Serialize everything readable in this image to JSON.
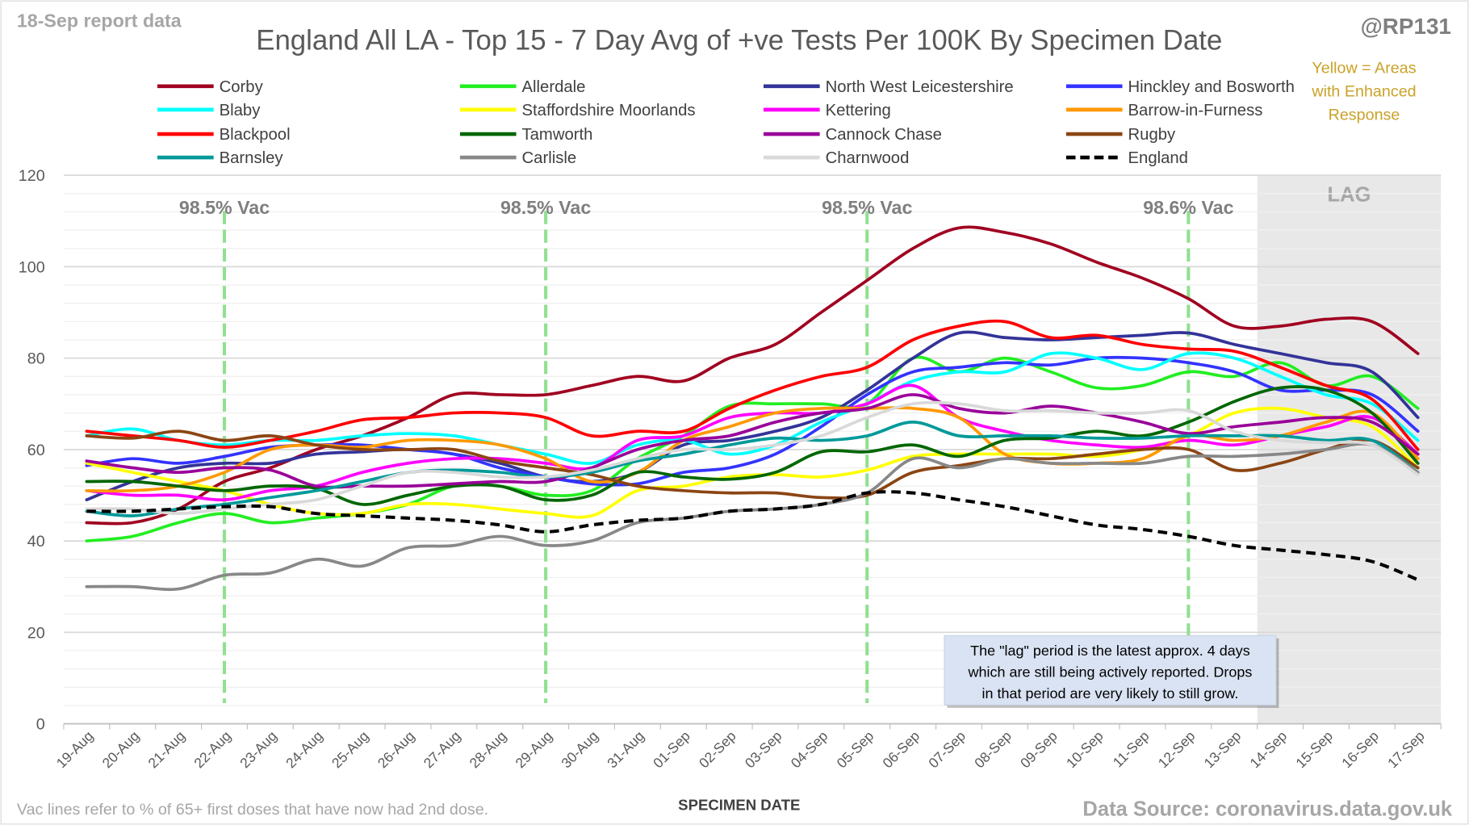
{
  "header": {
    "report_label": "18-Sep report data",
    "handle": "@RP131",
    "note_lines": [
      "Yellow = Areas",
      "with Enhanced",
      "Response"
    ]
  },
  "footer": {
    "vac_note": "Vac lines refer to % of 65+ first doses that have now had 2nd dose.",
    "source": "Data Source: coronavirus.data.gov.uk"
  },
  "callout": {
    "lines": [
      "The \"lag\" period is the latest approx. 4 days",
      "which are still being actively reported.  Drops",
      "in that period are very likely to still grow."
    ]
  },
  "colors": {
    "note": "#c9a227",
    "lag_fill": "#e8e8e8",
    "vac_line": "#90e090",
    "callout_fill": "#dae3f3"
  },
  "chart_data": {
    "type": "line",
    "title": "England All LA - Top 15 - 7 Day Avg of +ve Tests Per 100K By Specimen Date",
    "xlabel": "SPECIMEN DATE",
    "ylabel": "",
    "ylim": [
      0,
      120
    ],
    "yticks": [
      0,
      20,
      40,
      60,
      80,
      100,
      120
    ],
    "grid": true,
    "legend": "top",
    "categories": [
      "19-Aug",
      "20-Aug",
      "21-Aug",
      "22-Aug",
      "23-Aug",
      "24-Aug",
      "25-Aug",
      "26-Aug",
      "27-Aug",
      "28-Aug",
      "29-Aug",
      "30-Aug",
      "31-Aug",
      "01-Sep",
      "02-Sep",
      "03-Sep",
      "04-Sep",
      "05-Sep",
      "06-Sep",
      "07-Sep",
      "08-Sep",
      "09-Sep",
      "10-Sep",
      "11-Sep",
      "12-Sep",
      "13-Sep",
      "14-Sep",
      "15-Sep",
      "16-Sep",
      "17-Sep"
    ],
    "lag_region": {
      "label": "LAG",
      "from": "14-Sep",
      "to": "17-Sep"
    },
    "vac_lines": [
      {
        "date": "22-Aug",
        "label": "98.5% Vac"
      },
      {
        "date": "29-Aug",
        "label": "98.5% Vac"
      },
      {
        "date": "05-Sep",
        "label": "98.5% Vac"
      },
      {
        "date": "12-Sep",
        "label": "98.6% Vac"
      }
    ],
    "series": [
      {
        "name": "Corby",
        "color": "#a00020",
        "values": [
          44,
          44,
          47,
          53,
          56,
          60,
          63,
          67,
          72,
          72,
          72,
          74,
          76,
          75,
          80,
          83,
          90,
          97,
          104,
          108.5,
          107.5,
          105,
          101,
          97.5,
          93,
          87,
          87,
          88.5,
          88,
          81
        ]
      },
      {
        "name": "Allerdale",
        "color": "#22ee22",
        "values": [
          40,
          41,
          44,
          46,
          44,
          45,
          46,
          48,
          52,
          52,
          50,
          51,
          58,
          63,
          69.5,
          70,
          70,
          70,
          80,
          77,
          80,
          77,
          73.5,
          74,
          77,
          76,
          79,
          74,
          76,
          69
        ]
      },
      {
        "name": "North West Leicestershire",
        "color": "#333399",
        "values": [
          49,
          53,
          56,
          57,
          57,
          59,
          59.5,
          60,
          59,
          57,
          54,
          53,
          55,
          61,
          62,
          64,
          67,
          73,
          80,
          85.5,
          84.5,
          84,
          84.5,
          85,
          85.5,
          83,
          81,
          79,
          77,
          67
        ]
      },
      {
        "name": "Hinckley and Bosworth",
        "color": "#3333ff",
        "values": [
          56.5,
          58,
          57,
          58.5,
          60.5,
          61,
          61,
          60,
          59,
          56,
          54,
          52.5,
          52.5,
          55,
          56,
          59,
          65,
          72,
          77,
          78,
          79,
          78.5,
          80,
          80,
          79,
          77,
          73,
          73,
          72,
          64
        ]
      },
      {
        "name": "Blaby",
        "color": "#00ffff",
        "values": [
          63,
          64.5,
          62,
          61,
          62,
          62,
          63,
          63.5,
          63,
          61,
          59,
          57,
          61,
          62,
          59,
          61,
          66,
          70,
          75,
          77,
          77,
          81,
          80,
          77.5,
          81,
          80,
          76,
          72,
          70,
          62
        ]
      },
      {
        "name": "Staffordshire Moorlands",
        "color": "#ffff00",
        "values": [
          57,
          55,
          53,
          51,
          48,
          46,
          46,
          48,
          48,
          47,
          46,
          45.5,
          51,
          52,
          54,
          54.5,
          54,
          55.5,
          58.5,
          59,
          59,
          59,
          58.5,
          60,
          63,
          68,
          69,
          67,
          65,
          56
        ]
      },
      {
        "name": "Kettering",
        "color": "#ff00ff",
        "values": [
          51,
          50,
          50,
          49,
          51,
          52,
          55,
          57,
          58,
          58,
          57,
          56,
          62,
          63,
          67,
          68,
          68,
          70,
          74,
          67,
          64,
          62,
          61,
          60.5,
          62,
          61,
          63,
          65,
          67,
          59
        ]
      },
      {
        "name": "Barrow-in-Furness",
        "color": "#ff9900",
        "values": [
          51,
          51,
          52,
          55,
          60,
          61,
          60.5,
          62,
          62,
          61,
          58,
          53,
          55,
          62,
          65,
          68,
          69,
          69,
          69,
          67,
          59,
          57,
          57,
          58,
          63,
          62,
          63,
          66,
          68,
          58
        ]
      },
      {
        "name": "Blackpool",
        "color": "#ff0000",
        "values": [
          64,
          63,
          62,
          60.5,
          62,
          64,
          66.5,
          67,
          68,
          68,
          67,
          63,
          64,
          64,
          69,
          73,
          76,
          78,
          84,
          87,
          88,
          84.5,
          85,
          83,
          82,
          81.5,
          78,
          74,
          71,
          60
        ]
      },
      {
        "name": "Tamworth",
        "color": "#006600",
        "values": [
          53,
          53,
          52,
          51,
          52,
          51.5,
          48,
          50,
          52,
          52,
          49,
          50,
          55,
          54,
          53.5,
          55,
          59.5,
          59.5,
          61,
          58.5,
          62,
          62.5,
          64,
          63,
          66,
          70.5,
          73.5,
          73,
          68,
          57
        ]
      },
      {
        "name": "Cannock Chase",
        "color": "#990099",
        "values": [
          57.5,
          56,
          55,
          56,
          55.5,
          52,
          52,
          52,
          52.5,
          53,
          53,
          56,
          60,
          62,
          63,
          66,
          68,
          69,
          72,
          69,
          68,
          69.5,
          68,
          66,
          63.5,
          65,
          66,
          67,
          66,
          59
        ]
      },
      {
        "name": "Rugby",
        "color": "#8b4513",
        "values": [
          63,
          62.5,
          64,
          62,
          63,
          61,
          60,
          60,
          60,
          57.5,
          56,
          54.5,
          52,
          51,
          50.5,
          50.5,
          49.5,
          50,
          55,
          56.5,
          58,
          58,
          59,
          60,
          60,
          55.5,
          57,
          60,
          62,
          56
        ]
      },
      {
        "name": "Barnsley",
        "color": "#009999",
        "values": [
          46.5,
          45.5,
          47,
          48,
          49.5,
          51,
          53,
          55,
          55.5,
          55,
          54,
          55,
          57.5,
          59,
          61,
          62.5,
          62,
          63,
          66,
          63,
          63,
          63,
          62.5,
          62.5,
          63,
          63,
          63,
          62,
          62,
          55
        ]
      },
      {
        "name": "Carlisle",
        "color": "#888888",
        "values": [
          30,
          30,
          29.5,
          32.5,
          33,
          36,
          34.5,
          38.5,
          39,
          41,
          39,
          40,
          44,
          45,
          46.5,
          47,
          48,
          50.5,
          58,
          56,
          58,
          57,
          57,
          57,
          58.5,
          58.5,
          59,
          60,
          61,
          55
        ]
      },
      {
        "name": "Charnwood",
        "color": "#d9d9d9",
        "values": [
          47,
          47,
          46,
          47,
          48,
          49,
          52,
          55,
          55,
          54,
          54,
          55.5,
          58,
          60,
          60,
          61,
          63,
          67,
          70,
          70,
          68.5,
          68.5,
          68,
          68,
          68.5,
          64,
          62,
          61.5,
          61,
          54.5
        ]
      },
      {
        "name": "England",
        "color": "#000000",
        "dashed": true,
        "values": [
          46.5,
          46.5,
          47,
          47.5,
          47.5,
          46,
          45.5,
          45,
          44.5,
          43.5,
          42,
          43.5,
          44.5,
          45,
          46.5,
          47,
          48,
          50.5,
          50.5,
          49,
          47.5,
          45.5,
          43.5,
          42.5,
          41,
          39,
          38,
          37,
          35.5,
          31.5
        ]
      }
    ]
  }
}
